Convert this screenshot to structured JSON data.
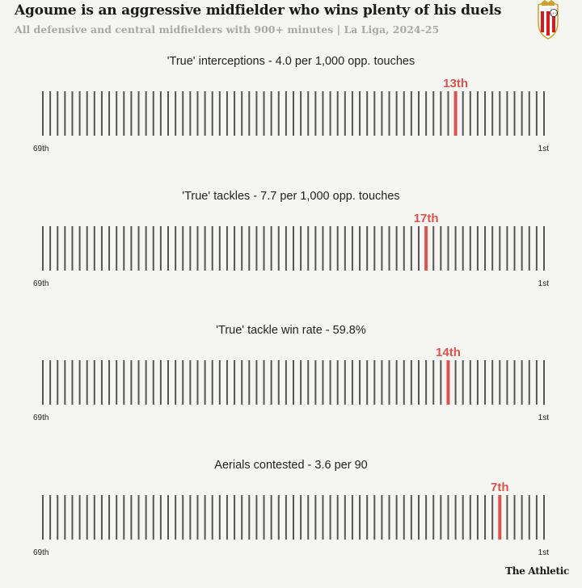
{
  "header": {
    "title": "Agoume is an aggressive midfielder who wins plenty of his duels",
    "subtitle": "All defensive and central midfielders with 900+ minutes | La Liga, 2024-25"
  },
  "crest": {
    "icon": "sevilla-crest-icon",
    "primary_color": "#d71920",
    "letters": "S F C"
  },
  "footer": {
    "logo": "The Athletic"
  },
  "colors": {
    "bar": "#555555",
    "highlight": "#d9534f",
    "background": "#f5f5f2"
  },
  "chart_data": [
    {
      "type": "rank-strip",
      "title": "'True' interceptions - 4.0 per 1,000 opp. touches",
      "total": 69,
      "rank": 13,
      "rank_label": "13th",
      "left_label": "69th",
      "right_label": "1st"
    },
    {
      "type": "rank-strip",
      "title": "'True' tackles - 7.7 per 1,000 opp. touches",
      "total": 69,
      "rank": 17,
      "rank_label": "17th",
      "left_label": "69th",
      "right_label": "1st"
    },
    {
      "type": "rank-strip",
      "title": "'True' tackle win rate - 59.8%",
      "total": 69,
      "rank": 14,
      "rank_label": "14th",
      "left_label": "69th",
      "right_label": "1st"
    },
    {
      "type": "rank-strip",
      "title": "Aerials contested - 3.6 per 90",
      "total": 69,
      "rank": 7,
      "rank_label": "7th",
      "left_label": "69th",
      "right_label": "1st"
    }
  ]
}
